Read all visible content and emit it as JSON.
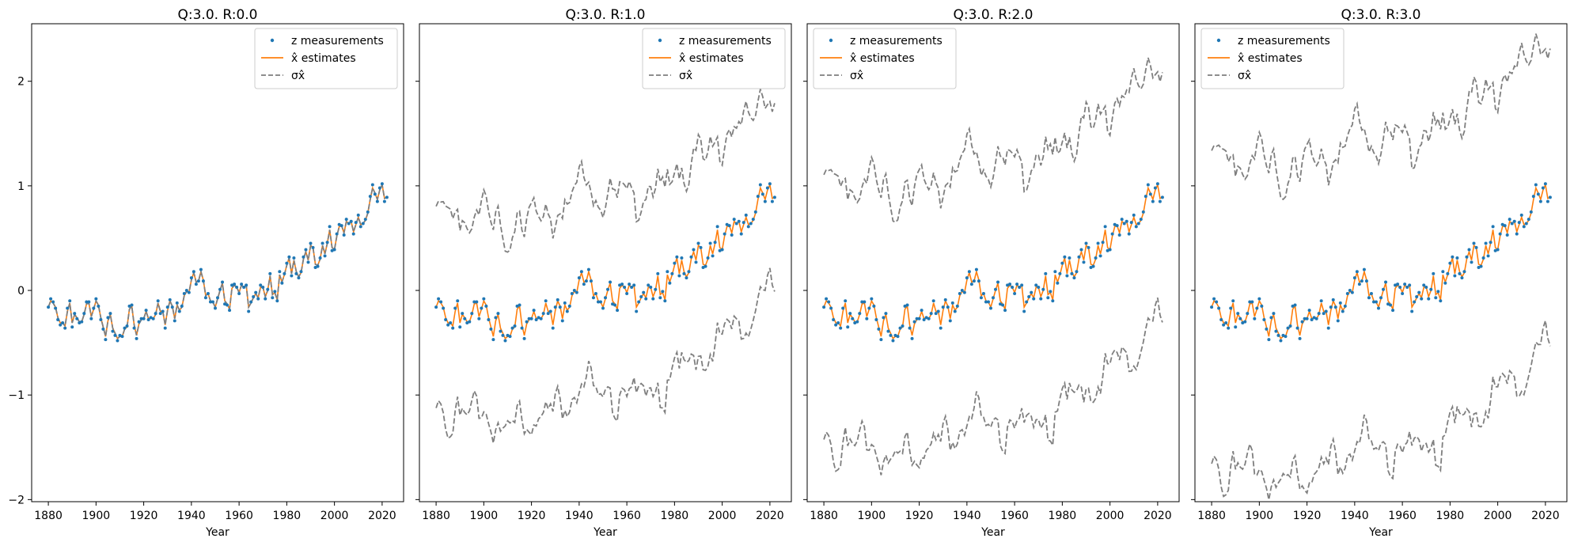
{
  "figure": {
    "xlabel": "Year",
    "x_ticks": [
      1880,
      1900,
      1920,
      1940,
      1960,
      1980,
      2000,
      2020
    ],
    "y_ticks": [
      -2,
      -1,
      0,
      1,
      2
    ],
    "y_tick_labels": [
      "−2",
      "−1",
      "0",
      "1",
      "2"
    ],
    "xlim": [
      1873,
      2029
    ],
    "ylim": [
      -2.02,
      2.55
    ],
    "shared_y": true
  },
  "chart_data": [
    {
      "type": "line",
      "title": "Q:3.0. R:0.0",
      "xlabel": "Year",
      "legend_position": "top-right",
      "legend": [
        "z measurements",
        "x̂ estimates",
        "σx̂"
      ],
      "sigma_offset": 0.0
    },
    {
      "type": "line",
      "title": "Q:3.0. R:1.0",
      "xlabel": "Year",
      "legend_position": "top-right",
      "legend": [
        "z measurements",
        "x̂ estimates",
        "σx̂"
      ],
      "sigma_offset": 0.95
    },
    {
      "type": "line",
      "title": "Q:3.0. R:2.0",
      "xlabel": "Year",
      "legend_position": "top-left",
      "legend": [
        "z measurements",
        "x̂ estimates",
        "σx̂"
      ],
      "sigma_offset": 1.25
    },
    {
      "type": "line",
      "title": "Q:3.0. R:3.0",
      "xlabel": "Year",
      "legend_position": "top-left",
      "legend": [
        "z measurements",
        "x̂ estimates",
        "σx̂"
      ],
      "sigma_offset": 1.48
    }
  ],
  "series_data": {
    "x_start": 1880,
    "x_end": 2022,
    "measurements": [
      -0.16,
      -0.08,
      -0.11,
      -0.17,
      -0.28,
      -0.33,
      -0.31,
      -0.36,
      -0.17,
      -0.1,
      -0.35,
      -0.22,
      -0.27,
      -0.31,
      -0.3,
      -0.22,
      -0.11,
      -0.11,
      -0.27,
      -0.17,
      -0.08,
      -0.15,
      -0.28,
      -0.37,
      -0.47,
      -0.26,
      -0.22,
      -0.39,
      -0.43,
      -0.48,
      -0.43,
      -0.44,
      -0.36,
      -0.34,
      -0.15,
      -0.14,
      -0.36,
      -0.46,
      -0.3,
      -0.27,
      -0.27,
      -0.19,
      -0.28,
      -0.26,
      -0.27,
      -0.22,
      -0.1,
      -0.22,
      -0.2,
      -0.36,
      -0.16,
      -0.09,
      -0.16,
      -0.29,
      -0.12,
      -0.2,
      -0.15,
      -0.03,
      0,
      -0.02,
      0.12,
      0.18,
      0.06,
      0.09,
      0.2,
      0.09,
      -0.07,
      -0.03,
      -0.11,
      -0.11,
      -0.17,
      -0.07,
      0.01,
      0.08,
      -0.13,
      -0.14,
      -0.19,
      0.05,
      0.06,
      0.03,
      -0.03,
      0.06,
      0.03,
      0.05,
      -0.2,
      -0.11,
      -0.06,
      -0.02,
      -0.08,
      0.05,
      0.03,
      -0.08,
      0.01,
      0.16,
      -0.07,
      -0.01,
      -0.1,
      0.18,
      0.07,
      0.16,
      0.26,
      0.32,
      0.14,
      0.31,
      0.16,
      0.12,
      0.18,
      0.32,
      0.39,
      0.27,
      0.45,
      0.41,
      0.22,
      0.23,
      0.31,
      0.45,
      0.33,
      0.46,
      0.61,
      0.38,
      0.39,
      0.54,
      0.63,
      0.62,
      0.53,
      0.68,
      0.64,
      0.66,
      0.54,
      0.65,
      0.72,
      0.61,
      0.64,
      0.68,
      0.75,
      0.9,
      1.01,
      0.92,
      0.85,
      0.98,
      1.02,
      0.85,
      0.89
    ],
    "estimates": [
      -0.16,
      -0.1,
      -0.12,
      -0.16,
      -0.26,
      -0.31,
      -0.31,
      -0.34,
      -0.2,
      -0.12,
      -0.31,
      -0.23,
      -0.26,
      -0.3,
      -0.3,
      -0.23,
      -0.13,
      -0.12,
      -0.25,
      -0.18,
      -0.1,
      -0.14,
      -0.26,
      -0.35,
      -0.44,
      -0.29,
      -0.23,
      -0.36,
      -0.41,
      -0.46,
      -0.44,
      -0.44,
      -0.37,
      -0.35,
      -0.18,
      -0.15,
      -0.33,
      -0.43,
      -0.32,
      -0.28,
      -0.27,
      -0.2,
      -0.27,
      -0.26,
      -0.27,
      -0.23,
      -0.12,
      -0.2,
      -0.2,
      -0.33,
      -0.19,
      -0.1,
      -0.15,
      -0.27,
      -0.14,
      -0.19,
      -0.16,
      -0.05,
      -0.01,
      -0.02,
      0.1,
      0.17,
      0.08,
      0.09,
      0.18,
      0.1,
      -0.05,
      -0.03,
      -0.1,
      -0.11,
      -0.16,
      -0.08,
      0,
      0.07,
      -0.1,
      -0.13,
      -0.18,
      0.02,
      0.05,
      0.03,
      -0.02,
      0.05,
      0.03,
      0.05,
      -0.16,
      -0.12,
      -0.07,
      -0.03,
      -0.07,
      0.03,
      0.03,
      -0.06,
      0,
      0.14,
      -0.04,
      -0.02,
      -0.09,
      0.15,
      0.08,
      0.15,
      0.24,
      0.31,
      0.16,
      0.29,
      0.18,
      0.13,
      0.17,
      0.3,
      0.37,
      0.29,
      0.43,
      0.41,
      0.25,
      0.24,
      0.3,
      0.43,
      0.35,
      0.45,
      0.58,
      0.41,
      0.39,
      0.52,
      0.61,
      0.62,
      0.55,
      0.66,
      0.64,
      0.66,
      0.56,
      0.63,
      0.7,
      0.63,
      0.64,
      0.67,
      0.74,
      0.87,
      0.98,
      0.93,
      0.87,
      0.96,
      1.01,
      0.88,
      0.89
    ]
  }
}
